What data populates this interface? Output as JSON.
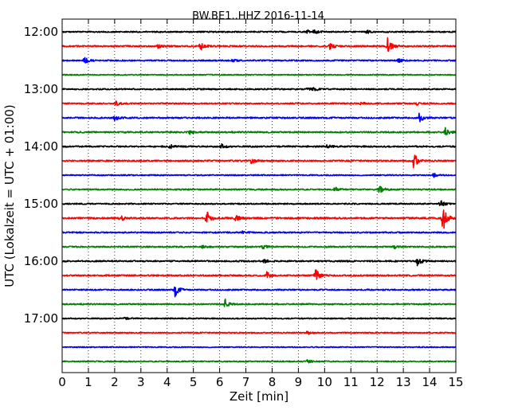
{
  "chart_data": {
    "type": "line",
    "title": "BW.BE1..HHZ 2016-11-14",
    "xlabel": "Zeit  [min]",
    "ylabel": "UTC (Lokalzeit = UTC + 01:00)",
    "xlim": [
      0,
      15
    ],
    "xticks": [
      "0",
      "1",
      "2",
      "3",
      "4",
      "5",
      "6",
      "7",
      "8",
      "9",
      "10",
      "11",
      "12",
      "13",
      "14",
      "15"
    ],
    "yticks": [
      {
        "label": "12:00",
        "row": 0
      },
      {
        "label": "13:00",
        "row": 4
      },
      {
        "label": "14:00",
        "row": 8
      },
      {
        "label": "15:00",
        "row": 12
      },
      {
        "label": "16:00",
        "row": 16
      },
      {
        "label": "17:00",
        "row": 20
      }
    ],
    "grid": "vertical dotted",
    "row_minutes": 15,
    "color_cycle": [
      "#000000",
      "#ff0000",
      "#0000ff",
      "#008000"
    ],
    "rows": [
      {
        "start": "12:00",
        "noise": 0.8,
        "events": [
          {
            "t": 9.35,
            "a": 0.5
          },
          {
            "t": 9.6,
            "a": 0.4
          },
          {
            "t": 11.6,
            "a": 0.35
          }
        ]
      },
      {
        "start": "12:15",
        "noise": 0.9,
        "events": [
          {
            "t": 3.65,
            "a": 0.4
          },
          {
            "t": 5.25,
            "a": 1.0
          },
          {
            "t": 10.2,
            "a": 0.8
          },
          {
            "t": 12.4,
            "a": 1.9
          }
        ]
      },
      {
        "start": "12:30",
        "noise": 0.8,
        "events": [
          {
            "t": 0.85,
            "a": 0.8
          },
          {
            "t": 6.5,
            "a": 0.3
          },
          {
            "t": 12.8,
            "a": 0.5
          }
        ]
      },
      {
        "start": "12:45",
        "noise": 0.6,
        "events": []
      },
      {
        "start": "13:00",
        "noise": 0.8,
        "events": [
          {
            "t": 9.35,
            "a": 0.45
          },
          {
            "t": 9.6,
            "a": 0.4
          }
        ]
      },
      {
        "start": "13:15",
        "noise": 0.8,
        "events": [
          {
            "t": 2.05,
            "a": 0.5
          },
          {
            "t": 11.4,
            "a": 0.4
          },
          {
            "t": 13.5,
            "a": 0.3
          }
        ]
      },
      {
        "start": "13:30",
        "noise": 0.9,
        "events": [
          {
            "t": 2.0,
            "a": 0.6
          },
          {
            "t": 13.6,
            "a": 1.1
          }
        ]
      },
      {
        "start": "13:45",
        "noise": 0.9,
        "events": [
          {
            "t": 4.85,
            "a": 0.5
          },
          {
            "t": 14.6,
            "a": 1.0
          }
        ]
      },
      {
        "start": "14:00",
        "noise": 0.9,
        "events": [
          {
            "t": 4.1,
            "a": 0.5
          },
          {
            "t": 6.05,
            "a": 0.6
          },
          {
            "t": 10.1,
            "a": 0.4
          }
        ]
      },
      {
        "start": "14:15",
        "noise": 0.9,
        "events": [
          {
            "t": 7.2,
            "a": 0.7
          },
          {
            "t": 13.4,
            "a": 1.9
          }
        ]
      },
      {
        "start": "14:30",
        "noise": 0.7,
        "events": [
          {
            "t": 14.15,
            "a": 0.5
          }
        ]
      },
      {
        "start": "14:45",
        "noise": 0.8,
        "events": [
          {
            "t": 10.4,
            "a": 0.5
          },
          {
            "t": 12.1,
            "a": 1.2
          }
        ]
      },
      {
        "start": "15:00",
        "noise": 0.8,
        "events": [
          {
            "t": 14.4,
            "a": 0.9
          }
        ]
      },
      {
        "start": "15:15",
        "noise": 1.0,
        "events": [
          {
            "t": 2.2,
            "a": 0.9
          },
          {
            "t": 5.5,
            "a": 1.6
          },
          {
            "t": 6.6,
            "a": 0.8
          },
          {
            "t": 14.5,
            "a": 3.2
          }
        ]
      },
      {
        "start": "15:30",
        "noise": 0.8,
        "events": [
          {
            "t": 6.85,
            "a": 0.3
          }
        ]
      },
      {
        "start": "15:45",
        "noise": 0.8,
        "events": [
          {
            "t": 5.35,
            "a": 0.4
          },
          {
            "t": 7.65,
            "a": 0.4
          },
          {
            "t": 12.65,
            "a": 0.4
          }
        ]
      },
      {
        "start": "16:00",
        "noise": 0.9,
        "events": [
          {
            "t": 7.7,
            "a": 0.4
          },
          {
            "t": 13.55,
            "a": 1.3
          }
        ]
      },
      {
        "start": "16:15",
        "noise": 0.9,
        "events": [
          {
            "t": 7.8,
            "a": 0.8
          },
          {
            "t": 9.65,
            "a": 1.6
          }
        ]
      },
      {
        "start": "16:30",
        "noise": 0.8,
        "events": [
          {
            "t": 4.3,
            "a": 1.5
          }
        ]
      },
      {
        "start": "16:45",
        "noise": 0.8,
        "events": [
          {
            "t": 6.2,
            "a": 1.2
          }
        ]
      },
      {
        "start": "17:00",
        "noise": 0.7,
        "events": [
          {
            "t": 2.35,
            "a": 0.3
          }
        ]
      },
      {
        "start": "17:15",
        "noise": 0.7,
        "events": [
          {
            "t": 9.35,
            "a": 0.45
          }
        ]
      },
      {
        "start": "17:30",
        "noise": 0.6,
        "events": []
      },
      {
        "start": "17:45",
        "noise": 0.7,
        "events": [
          {
            "t": 9.35,
            "a": 0.4
          }
        ]
      }
    ]
  }
}
